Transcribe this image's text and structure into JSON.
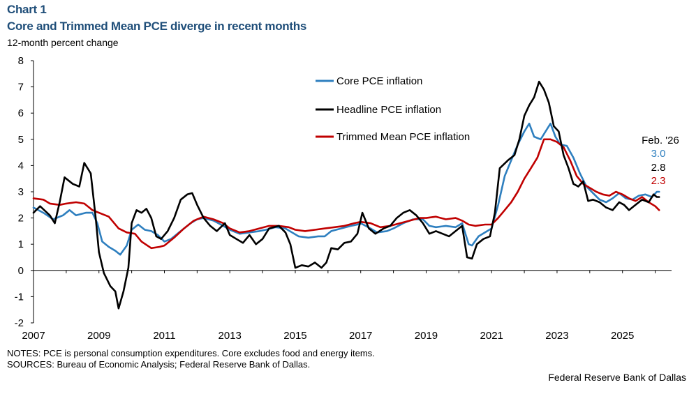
{
  "chart_label": "Chart 1",
  "title": "Core and Trimmed Mean PCE diverge in recent months",
  "units": "12-month percent change",
  "notes": "NOTES: PCE is personal consumption expenditures. Core excludes food and energy items.",
  "sources": "SOURCES: Bureau of Economic Analysis; Federal Reserve Bank of Dallas.",
  "credit": "Federal Reserve Bank of Dallas",
  "colors": {
    "core": "#2e7fbf",
    "headline": "#000000",
    "trimmed": "#c00000"
  },
  "chart_data": {
    "type": "line",
    "ylim": [
      -2,
      8
    ],
    "yticks": [
      "8",
      "7",
      "6",
      "5",
      "4",
      "3",
      "2",
      "1",
      "0",
      "-1",
      "-2"
    ],
    "xlim": [
      2007,
      2026.5
    ],
    "xticks": [
      "2007",
      "2009",
      "2011",
      "2013",
      "2015",
      "2017",
      "2019",
      "2021",
      "2023",
      "2025"
    ],
    "legend_position": "top-center",
    "end_label": {
      "title": "Feb. '26",
      "core": "3.0",
      "headline": "2.8",
      "trimmed": "2.3"
    },
    "series": [
      {
        "key": "core",
        "name": "Core PCE inflation",
        "points": [
          [
            2007.0,
            2.4
          ],
          [
            2007.3,
            2.2
          ],
          [
            2007.6,
            1.95
          ],
          [
            2007.9,
            2.1
          ],
          [
            2008.1,
            2.3
          ],
          [
            2008.3,
            2.1
          ],
          [
            2008.6,
            2.2
          ],
          [
            2008.8,
            2.2
          ],
          [
            2008.95,
            1.8
          ],
          [
            2009.1,
            1.1
          ],
          [
            2009.3,
            0.9
          ],
          [
            2009.5,
            0.75
          ],
          [
            2009.65,
            0.6
          ],
          [
            2009.85,
            0.95
          ],
          [
            2010.0,
            1.55
          ],
          [
            2010.2,
            1.75
          ],
          [
            2010.4,
            1.55
          ],
          [
            2010.6,
            1.5
          ],
          [
            2010.8,
            1.35
          ],
          [
            2011.0,
            1.1
          ],
          [
            2011.2,
            1.2
          ],
          [
            2011.5,
            1.5
          ],
          [
            2011.8,
            1.8
          ],
          [
            2012.0,
            1.95
          ],
          [
            2012.2,
            2.0
          ],
          [
            2012.5,
            1.9
          ],
          [
            2012.8,
            1.7
          ],
          [
            2013.0,
            1.55
          ],
          [
            2013.3,
            1.4
          ],
          [
            2013.6,
            1.45
          ],
          [
            2013.9,
            1.5
          ],
          [
            2014.1,
            1.55
          ],
          [
            2014.4,
            1.65
          ],
          [
            2014.7,
            1.6
          ],
          [
            2014.9,
            1.45
          ],
          [
            2015.1,
            1.3
          ],
          [
            2015.4,
            1.25
          ],
          [
            2015.7,
            1.3
          ],
          [
            2015.9,
            1.3
          ],
          [
            2016.1,
            1.5
          ],
          [
            2016.4,
            1.6
          ],
          [
            2016.7,
            1.7
          ],
          [
            2016.9,
            1.75
          ],
          [
            2017.0,
            1.8
          ],
          [
            2017.3,
            1.6
          ],
          [
            2017.5,
            1.45
          ],
          [
            2017.8,
            1.5
          ],
          [
            2018.0,
            1.6
          ],
          [
            2018.3,
            1.8
          ],
          [
            2018.6,
            1.95
          ],
          [
            2018.9,
            1.95
          ],
          [
            2019.1,
            1.7
          ],
          [
            2019.3,
            1.65
          ],
          [
            2019.6,
            1.7
          ],
          [
            2019.9,
            1.65
          ],
          [
            2020.1,
            1.8
          ],
          [
            2020.3,
            1.0
          ],
          [
            2020.4,
            0.95
          ],
          [
            2020.6,
            1.3
          ],
          [
            2020.8,
            1.45
          ],
          [
            2021.0,
            1.6
          ],
          [
            2021.2,
            2.5
          ],
          [
            2021.4,
            3.6
          ],
          [
            2021.6,
            4.2
          ],
          [
            2021.8,
            4.8
          ],
          [
            2022.0,
            5.3
          ],
          [
            2022.15,
            5.6
          ],
          [
            2022.3,
            5.1
          ],
          [
            2022.5,
            5.0
          ],
          [
            2022.65,
            5.3
          ],
          [
            2022.8,
            5.6
          ],
          [
            2022.95,
            5.1
          ],
          [
            2023.1,
            4.8
          ],
          [
            2023.3,
            4.75
          ],
          [
            2023.5,
            4.3
          ],
          [
            2023.7,
            3.7
          ],
          [
            2023.9,
            3.2
          ],
          [
            2024.1,
            2.95
          ],
          [
            2024.3,
            2.7
          ],
          [
            2024.5,
            2.6
          ],
          [
            2024.7,
            2.75
          ],
          [
            2024.9,
            2.95
          ],
          [
            2025.1,
            2.75
          ],
          [
            2025.3,
            2.7
          ],
          [
            2025.5,
            2.85
          ],
          [
            2025.7,
            2.9
          ],
          [
            2025.9,
            2.8
          ],
          [
            2026.05,
            3.0
          ],
          [
            2026.12,
            3.0
          ]
        ]
      },
      {
        "key": "headline",
        "name": "Headline PCE inflation",
        "points": [
          [
            2007.0,
            2.2
          ],
          [
            2007.2,
            2.45
          ],
          [
            2007.5,
            2.1
          ],
          [
            2007.65,
            1.8
          ],
          [
            2007.8,
            2.6
          ],
          [
            2007.95,
            3.55
          ],
          [
            2008.2,
            3.3
          ],
          [
            2008.4,
            3.2
          ],
          [
            2008.55,
            4.1
          ],
          [
            2008.75,
            3.7
          ],
          [
            2008.9,
            2.0
          ],
          [
            2009.0,
            0.7
          ],
          [
            2009.15,
            -0.1
          ],
          [
            2009.35,
            -0.6
          ],
          [
            2009.5,
            -0.8
          ],
          [
            2009.6,
            -1.45
          ],
          [
            2009.75,
            -0.8
          ],
          [
            2009.9,
            0.1
          ],
          [
            2010.0,
            1.8
          ],
          [
            2010.15,
            2.3
          ],
          [
            2010.3,
            2.2
          ],
          [
            2010.45,
            2.35
          ],
          [
            2010.6,
            2.0
          ],
          [
            2010.75,
            1.3
          ],
          [
            2010.9,
            1.2
          ],
          [
            2011.1,
            1.5
          ],
          [
            2011.3,
            2.0
          ],
          [
            2011.5,
            2.7
          ],
          [
            2011.7,
            2.9
          ],
          [
            2011.85,
            2.95
          ],
          [
            2012.0,
            2.5
          ],
          [
            2012.2,
            2.0
          ],
          [
            2012.4,
            1.7
          ],
          [
            2012.6,
            1.5
          ],
          [
            2012.85,
            1.8
          ],
          [
            2013.0,
            1.35
          ],
          [
            2013.2,
            1.2
          ],
          [
            2013.4,
            1.05
          ],
          [
            2013.6,
            1.35
          ],
          [
            2013.8,
            1.0
          ],
          [
            2014.0,
            1.2
          ],
          [
            2014.2,
            1.6
          ],
          [
            2014.5,
            1.7
          ],
          [
            2014.7,
            1.45
          ],
          [
            2014.85,
            1.0
          ],
          [
            2015.0,
            0.1
          ],
          [
            2015.2,
            0.2
          ],
          [
            2015.4,
            0.15
          ],
          [
            2015.6,
            0.3
          ],
          [
            2015.8,
            0.1
          ],
          [
            2015.95,
            0.3
          ],
          [
            2016.1,
            0.85
          ],
          [
            2016.3,
            0.8
          ],
          [
            2016.5,
            1.05
          ],
          [
            2016.7,
            1.1
          ],
          [
            2016.9,
            1.4
          ],
          [
            2017.05,
            2.2
          ],
          [
            2017.25,
            1.6
          ],
          [
            2017.45,
            1.4
          ],
          [
            2017.7,
            1.6
          ],
          [
            2017.9,
            1.7
          ],
          [
            2018.1,
            2.0
          ],
          [
            2018.3,
            2.2
          ],
          [
            2018.5,
            2.3
          ],
          [
            2018.7,
            2.1
          ],
          [
            2018.9,
            1.8
          ],
          [
            2019.1,
            1.4
          ],
          [
            2019.3,
            1.5
          ],
          [
            2019.5,
            1.4
          ],
          [
            2019.7,
            1.3
          ],
          [
            2019.9,
            1.5
          ],
          [
            2020.1,
            1.7
          ],
          [
            2020.25,
            0.5
          ],
          [
            2020.4,
            0.45
          ],
          [
            2020.55,
            1.0
          ],
          [
            2020.75,
            1.2
          ],
          [
            2020.95,
            1.3
          ],
          [
            2021.1,
            2.2
          ],
          [
            2021.25,
            3.9
          ],
          [
            2021.5,
            4.2
          ],
          [
            2021.7,
            4.4
          ],
          [
            2021.85,
            5.0
          ],
          [
            2022.0,
            5.9
          ],
          [
            2022.15,
            6.3
          ],
          [
            2022.3,
            6.6
          ],
          [
            2022.45,
            7.2
          ],
          [
            2022.6,
            6.9
          ],
          [
            2022.75,
            6.4
          ],
          [
            2022.9,
            5.5
          ],
          [
            2023.05,
            5.3
          ],
          [
            2023.2,
            4.4
          ],
          [
            2023.35,
            3.9
          ],
          [
            2023.5,
            3.3
          ],
          [
            2023.65,
            3.2
          ],
          [
            2023.8,
            3.4
          ],
          [
            2023.95,
            2.65
          ],
          [
            2024.1,
            2.7
          ],
          [
            2024.3,
            2.6
          ],
          [
            2024.5,
            2.4
          ],
          [
            2024.7,
            2.3
          ],
          [
            2024.9,
            2.6
          ],
          [
            2025.05,
            2.5
          ],
          [
            2025.2,
            2.3
          ],
          [
            2025.4,
            2.5
          ],
          [
            2025.6,
            2.7
          ],
          [
            2025.8,
            2.6
          ],
          [
            2025.95,
            2.9
          ],
          [
            2026.05,
            2.8
          ],
          [
            2026.12,
            2.8
          ]
        ]
      },
      {
        "key": "trimmed",
        "name": "Trimmed Mean PCE inflation",
        "points": [
          [
            2007.0,
            2.75
          ],
          [
            2007.3,
            2.7
          ],
          [
            2007.5,
            2.55
          ],
          [
            2007.8,
            2.5
          ],
          [
            2008.0,
            2.55
          ],
          [
            2008.3,
            2.6
          ],
          [
            2008.55,
            2.55
          ],
          [
            2008.8,
            2.3
          ],
          [
            2009.0,
            2.2
          ],
          [
            2009.3,
            2.05
          ],
          [
            2009.6,
            1.6
          ],
          [
            2009.85,
            1.45
          ],
          [
            2010.1,
            1.4
          ],
          [
            2010.3,
            1.1
          ],
          [
            2010.6,
            0.85
          ],
          [
            2010.85,
            0.9
          ],
          [
            2011.0,
            0.95
          ],
          [
            2011.3,
            1.25
          ],
          [
            2011.6,
            1.6
          ],
          [
            2011.9,
            1.9
          ],
          [
            2012.2,
            2.05
          ],
          [
            2012.5,
            1.95
          ],
          [
            2012.8,
            1.8
          ],
          [
            2013.0,
            1.6
          ],
          [
            2013.3,
            1.45
          ],
          [
            2013.6,
            1.5
          ],
          [
            2013.9,
            1.6
          ],
          [
            2014.2,
            1.7
          ],
          [
            2014.5,
            1.7
          ],
          [
            2014.8,
            1.65
          ],
          [
            2015.0,
            1.55
          ],
          [
            2015.3,
            1.5
          ],
          [
            2015.6,
            1.55
          ],
          [
            2015.9,
            1.6
          ],
          [
            2016.2,
            1.65
          ],
          [
            2016.5,
            1.7
          ],
          [
            2016.8,
            1.8
          ],
          [
            2017.0,
            1.85
          ],
          [
            2017.3,
            1.8
          ],
          [
            2017.6,
            1.65
          ],
          [
            2017.9,
            1.7
          ],
          [
            2018.2,
            1.8
          ],
          [
            2018.5,
            1.9
          ],
          [
            2018.8,
            2.0
          ],
          [
            2019.0,
            2.0
          ],
          [
            2019.3,
            2.05
          ],
          [
            2019.6,
            1.95
          ],
          [
            2019.9,
            2.0
          ],
          [
            2020.1,
            1.9
          ],
          [
            2020.3,
            1.75
          ],
          [
            2020.5,
            1.7
          ],
          [
            2020.8,
            1.75
          ],
          [
            2021.0,
            1.75
          ],
          [
            2021.2,
            2.0
          ],
          [
            2021.4,
            2.3
          ],
          [
            2021.6,
            2.6
          ],
          [
            2021.8,
            3.0
          ],
          [
            2022.0,
            3.5
          ],
          [
            2022.2,
            3.9
          ],
          [
            2022.4,
            4.3
          ],
          [
            2022.6,
            5.0
          ],
          [
            2022.8,
            5.0
          ],
          [
            2023.0,
            4.9
          ],
          [
            2023.2,
            4.7
          ],
          [
            2023.4,
            4.2
          ],
          [
            2023.6,
            3.6
          ],
          [
            2023.8,
            3.3
          ],
          [
            2024.0,
            3.15
          ],
          [
            2024.2,
            3.0
          ],
          [
            2024.4,
            2.9
          ],
          [
            2024.6,
            2.85
          ],
          [
            2024.8,
            3.0
          ],
          [
            2025.0,
            2.9
          ],
          [
            2025.2,
            2.75
          ],
          [
            2025.4,
            2.65
          ],
          [
            2025.6,
            2.8
          ],
          [
            2025.8,
            2.6
          ],
          [
            2026.0,
            2.45
          ],
          [
            2026.12,
            2.3
          ]
        ]
      }
    ]
  }
}
